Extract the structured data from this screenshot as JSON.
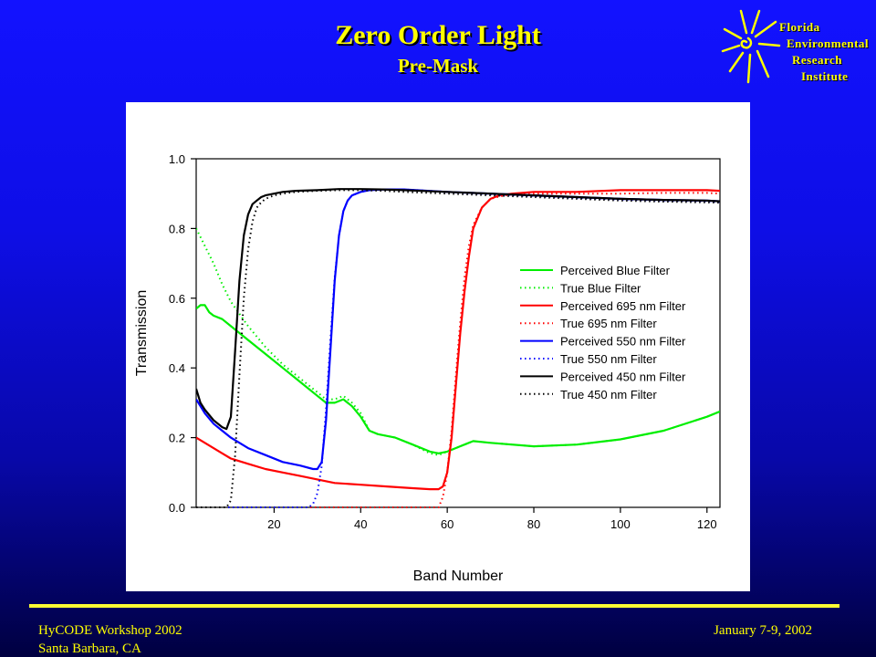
{
  "slide": {
    "title": "Zero Order Light",
    "subtitle": "Pre-Mask"
  },
  "logo": {
    "lines": [
      "Florida",
      "Environmental",
      "Research",
      "Institute"
    ],
    "icon": "sun-icon"
  },
  "footer": {
    "left_line1": "HyCODE Workshop 2002",
    "left_line2": "Santa Barbara, CA",
    "right": "January 7-9, 2002"
  },
  "colors": {
    "background": "#0e0ee6",
    "title": "#ffff00",
    "blue_filter": "#00ee00",
    "filter_695": "#ff0000",
    "filter_550": "#0000ff",
    "filter_450": "#000000"
  },
  "chart_data": {
    "type": "line",
    "xlabel": "Band Number",
    "ylabel": "Transmission",
    "xlim": [
      2,
      123
    ],
    "ylim": [
      0,
      1.0
    ],
    "xticks": [
      20,
      40,
      60,
      80,
      100,
      120
    ],
    "yticks": [
      0.0,
      0.2,
      0.4,
      0.6,
      0.8,
      1.0
    ],
    "ytick_labels": [
      "0.0",
      "0.2",
      "0.4",
      "0.6",
      "0.8",
      "1.0"
    ],
    "grid": false,
    "legend_position": "right-middle",
    "series": [
      {
        "name": "Perceived Blue Filter",
        "color": "#00ee00",
        "style": "solid",
        "x": [
          2,
          3,
          4,
          5,
          6,
          8,
          10,
          14,
          18,
          22,
          26,
          30,
          32,
          34,
          36,
          38,
          40,
          42,
          44,
          48,
          52,
          56,
          58,
          60,
          64,
          66,
          70,
          80,
          90,
          100,
          110,
          120,
          123
        ],
        "y": [
          0.57,
          0.58,
          0.58,
          0.56,
          0.55,
          0.54,
          0.52,
          0.48,
          0.44,
          0.4,
          0.36,
          0.32,
          0.3,
          0.3,
          0.31,
          0.29,
          0.26,
          0.22,
          0.21,
          0.2,
          0.18,
          0.16,
          0.155,
          0.16,
          0.18,
          0.19,
          0.185,
          0.175,
          0.18,
          0.195,
          0.22,
          0.26,
          0.275
        ]
      },
      {
        "name": "True Blue Filter",
        "color": "#00ee00",
        "style": "dotted",
        "x": [
          2,
          4,
          6,
          8,
          10,
          14,
          18,
          22,
          26,
          30,
          32,
          34,
          36,
          38,
          40,
          42,
          44,
          48,
          52,
          56,
          58,
          60,
          64,
          66,
          70,
          80,
          90,
          100,
          110,
          120,
          123
        ],
        "y": [
          0.8,
          0.75,
          0.7,
          0.64,
          0.59,
          0.52,
          0.46,
          0.41,
          0.37,
          0.33,
          0.31,
          0.31,
          0.32,
          0.3,
          0.27,
          0.22,
          0.21,
          0.2,
          0.18,
          0.155,
          0.15,
          0.16,
          0.18,
          0.19,
          0.185,
          0.175,
          0.18,
          0.195,
          0.22,
          0.26,
          0.275
        ]
      },
      {
        "name": "Perceived 695 nm Filter",
        "color": "#ff0000",
        "style": "solid",
        "x": [
          2,
          4,
          6,
          8,
          10,
          14,
          18,
          22,
          26,
          30,
          34,
          40,
          46,
          52,
          56,
          58,
          59,
          60,
          61,
          62,
          63,
          64,
          65,
          66,
          68,
          70,
          72,
          75,
          80,
          90,
          100,
          110,
          120,
          123
        ],
        "y": [
          0.2,
          0.185,
          0.17,
          0.155,
          0.14,
          0.125,
          0.11,
          0.1,
          0.09,
          0.08,
          0.07,
          0.065,
          0.06,
          0.055,
          0.052,
          0.052,
          0.06,
          0.1,
          0.2,
          0.35,
          0.5,
          0.62,
          0.72,
          0.8,
          0.86,
          0.885,
          0.895,
          0.9,
          0.905,
          0.905,
          0.91,
          0.91,
          0.91,
          0.908
        ]
      },
      {
        "name": "True 695 nm Filter",
        "color": "#ff0000",
        "style": "dotted",
        "x": [
          2,
          10,
          20,
          30,
          40,
          50,
          55,
          58,
          59,
          60,
          61,
          62,
          63,
          64,
          65,
          66,
          68,
          70,
          72,
          75,
          80,
          90,
          100,
          110,
          120,
          123
        ],
        "y": [
          0.0,
          0.0,
          0.0,
          0.0,
          0.0,
          0.0,
          0.0,
          0.0,
          0.03,
          0.1,
          0.22,
          0.38,
          0.53,
          0.66,
          0.75,
          0.81,
          0.86,
          0.885,
          0.892,
          0.898,
          0.9,
          0.9,
          0.9,
          0.902,
          0.902,
          0.9
        ]
      },
      {
        "name": "Perceived 550 nm Filter",
        "color": "#0000ff",
        "style": "solid",
        "x": [
          2,
          4,
          6,
          8,
          10,
          14,
          18,
          22,
          26,
          29,
          30,
          31,
          32,
          33,
          34,
          35,
          36,
          37,
          38,
          40,
          42,
          45,
          50,
          60,
          70,
          80,
          90,
          100,
          110,
          120,
          123
        ],
        "y": [
          0.31,
          0.27,
          0.24,
          0.22,
          0.2,
          0.17,
          0.15,
          0.13,
          0.12,
          0.11,
          0.11,
          0.13,
          0.25,
          0.45,
          0.65,
          0.78,
          0.85,
          0.88,
          0.895,
          0.905,
          0.91,
          0.912,
          0.912,
          0.905,
          0.9,
          0.895,
          0.89,
          0.885,
          0.882,
          0.88,
          0.878
        ]
      },
      {
        "name": "True 550 nm Filter",
        "color": "#0000ff",
        "style": "dotted",
        "x": [
          2,
          10,
          20,
          28,
          29,
          30,
          31,
          32,
          33,
          34,
          35,
          36,
          37,
          38,
          40,
          42,
          45,
          50,
          60,
          70,
          80,
          90,
          100,
          110,
          120,
          123
        ],
        "y": [
          0.0,
          0.0,
          0.0,
          0.0,
          0.01,
          0.04,
          0.12,
          0.28,
          0.48,
          0.66,
          0.78,
          0.85,
          0.88,
          0.895,
          0.905,
          0.91,
          0.912,
          0.912,
          0.905,
          0.898,
          0.893,
          0.888,
          0.883,
          0.88,
          0.878,
          0.876
        ]
      },
      {
        "name": "Perceived 450 nm Filter",
        "color": "#000000",
        "style": "solid",
        "x": [
          2,
          3,
          4,
          6,
          8,
          9,
          10,
          11,
          12,
          13,
          14,
          15,
          16,
          17,
          18,
          20,
          22,
          25,
          30,
          35,
          40,
          45,
          50,
          60,
          70,
          80,
          90,
          100,
          110,
          120,
          123
        ],
        "y": [
          0.34,
          0.3,
          0.28,
          0.25,
          0.23,
          0.225,
          0.26,
          0.45,
          0.65,
          0.78,
          0.84,
          0.87,
          0.88,
          0.89,
          0.895,
          0.9,
          0.905,
          0.908,
          0.91,
          0.913,
          0.913,
          0.912,
          0.91,
          0.905,
          0.9,
          0.895,
          0.89,
          0.885,
          0.882,
          0.88,
          0.878
        ]
      },
      {
        "name": "True 450 nm Filter",
        "color": "#000000",
        "style": "dotted",
        "x": [
          2,
          6,
          9,
          10,
          11,
          12,
          13,
          14,
          15,
          16,
          17,
          18,
          20,
          22,
          25,
          30,
          35,
          40,
          45,
          50,
          60,
          70,
          80,
          90,
          100,
          110,
          120,
          123
        ],
        "y": [
          0.0,
          0.0,
          0.0,
          0.02,
          0.15,
          0.38,
          0.6,
          0.74,
          0.82,
          0.86,
          0.875,
          0.885,
          0.895,
          0.9,
          0.905,
          0.908,
          0.91,
          0.91,
          0.908,
          0.905,
          0.9,
          0.895,
          0.89,
          0.885,
          0.88,
          0.877,
          0.875,
          0.874
        ]
      }
    ]
  }
}
